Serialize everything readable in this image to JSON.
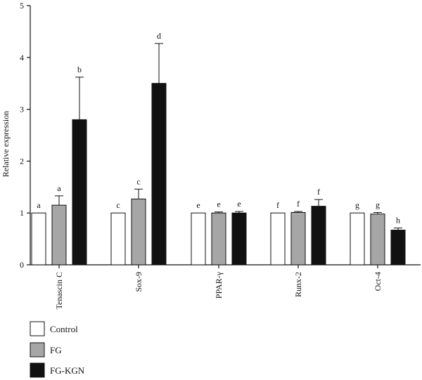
{
  "chart_data": {
    "type": "bar",
    "ylabel": "Relative expression",
    "ylim": [
      0,
      5
    ],
    "yticks": [
      0,
      1,
      2,
      3,
      4,
      5
    ],
    "categories": [
      "Tenascin C",
      "Sox-9",
      "PPAR-γ",
      "Runx-2",
      "Oct-4"
    ],
    "series": [
      {
        "name": "Control",
        "color": "#ffffff",
        "values": [
          1.0,
          1.0,
          1.0,
          1.0,
          1.0
        ],
        "errors": [
          0,
          0,
          0,
          0,
          0
        ],
        "labels": [
          "a",
          "c",
          "e",
          "f",
          "g"
        ]
      },
      {
        "name": "FG",
        "color": "#a6a6a6",
        "values": [
          1.15,
          1.27,
          1.0,
          1.01,
          0.98
        ],
        "errors": [
          0.18,
          0.19,
          0.02,
          0.02,
          0.03
        ],
        "labels": [
          "a",
          "c",
          "e",
          "f",
          "g"
        ]
      },
      {
        "name": "FG-KGN",
        "color": "#111111",
        "values": [
          2.8,
          3.5,
          1.0,
          1.13,
          0.67
        ],
        "errors": [
          0.82,
          0.77,
          0.03,
          0.13,
          0.04
        ],
        "labels": [
          "b",
          "d",
          "e",
          "f",
          "h"
        ]
      }
    ],
    "grid": false,
    "legend_position": "bottom-left"
  }
}
